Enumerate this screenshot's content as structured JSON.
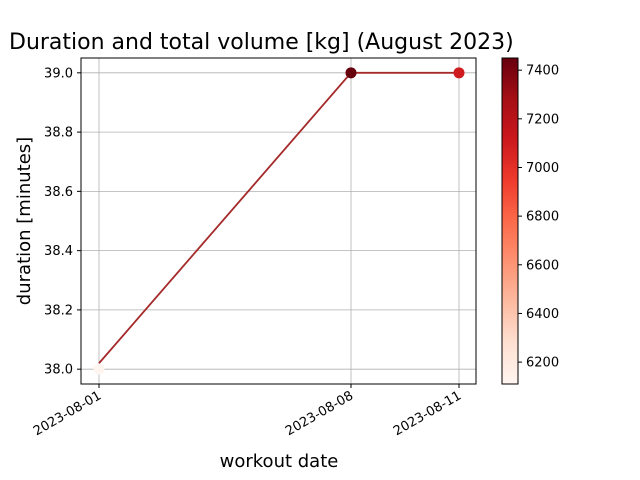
{
  "chart_data": {
    "type": "line",
    "title": "Duration and total volume [kg] (August 2023)",
    "xlabel": "workout date",
    "ylabel": "duration [minutes]",
    "x_ticks": [
      "2023-08-01",
      "2023-08-08",
      "2023-08-11"
    ],
    "y_ticks": [
      "38.0",
      "38.2",
      "38.4",
      "38.6",
      "38.8",
      "39.0"
    ],
    "ylim": [
      37.95,
      39.05
    ],
    "xlim": [
      "2023-07-31",
      "2023-08-11"
    ],
    "grid": true,
    "line_color": "#a52a2a",
    "points": [
      {
        "x": "2023-08-01",
        "y": 38.0,
        "volume": 6110
      },
      {
        "x": "2023-08-08",
        "y": 39.0,
        "volume": 7450
      },
      {
        "x": "2023-08-11",
        "y": 39.0,
        "volume": 7100
      }
    ],
    "line_series": [
      {
        "x": "2023-08-01",
        "y": 38.02
      },
      {
        "x": "2023-08-08",
        "y": 39.0
      },
      {
        "x": "2023-08-11",
        "y": 39.0
      }
    ],
    "colorbar": {
      "colormap": "Reds",
      "min": 6110,
      "max": 7450,
      "ticks": [
        "6200",
        "6400",
        "6600",
        "6800",
        "7000",
        "7200",
        "7400"
      ]
    }
  }
}
